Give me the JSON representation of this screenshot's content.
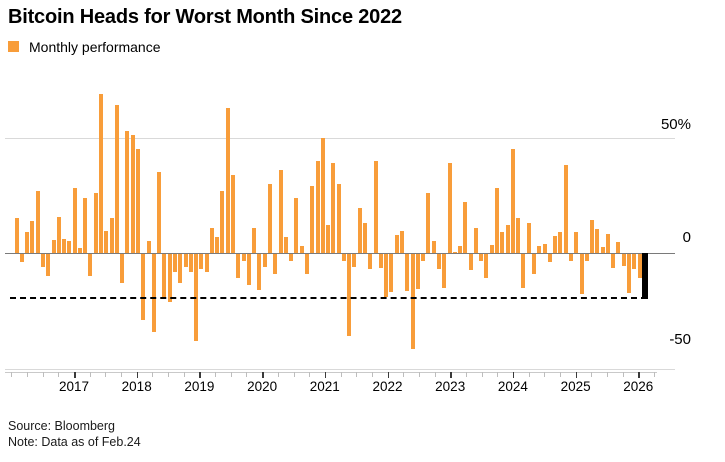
{
  "header": {
    "title": "Bitcoin Heads for Worst Month Since 2022",
    "legend_label": "Monthly performance"
  },
  "footer": {
    "source": "Source: Bloomberg",
    "note": "Note: Data as of Feb.24"
  },
  "chart_data": {
    "type": "bar",
    "title": "Bitcoin Heads for Worst Month Since 2022",
    "legend": [
      "Monthly performance"
    ],
    "unit": "percent monthly return",
    "x_tick_labels": [
      "2017",
      "2018",
      "2019",
      "2020",
      "2021",
      "2022",
      "2023",
      "2024",
      "2025",
      "2026"
    ],
    "y_tick_labels": [
      "50%",
      "0",
      "-50"
    ],
    "y_tick_values": [
      50,
      0,
      -50
    ],
    "ylim": [
      -58,
      78
    ],
    "grid": "horizontal",
    "legend_position": "top-left",
    "dashed_reference_line": -20,
    "bar_color": "#F89D3A",
    "highlight_color": "#000000",
    "highlight_last": true,
    "values": [
      15,
      -4,
      9,
      14,
      27,
      -6,
      -10,
      5.5,
      15.5,
      6,
      5,
      28,
      2,
      24,
      -10,
      26,
      69,
      9.5,
      15,
      64,
      -13,
      53,
      51,
      45,
      -29,
      5,
      -34,
      35,
      -19,
      -21,
      -8,
      -13,
      -6,
      -8,
      -38,
      -7,
      -8,
      11,
      7,
      27,
      63,
      34,
      -11,
      -3.5,
      -14,
      11,
      -16,
      -6,
      30,
      -9,
      36,
      7,
      -3.5,
      24,
      3,
      -9,
      29,
      40,
      50,
      12,
      39,
      30,
      -3.5,
      -36,
      -6,
      19.5,
      13,
      -7,
      40,
      -6.5,
      -19,
      -17,
      8,
      9.5,
      -16.5,
      -41.5,
      -15.5,
      -3.5,
      26,
      5,
      -7,
      -15,
      39,
      0.5,
      3,
      22,
      -7.5,
      11,
      -3.5,
      -11,
      3.5,
      28,
      9,
      12,
      45,
      15,
      -15,
      13,
      -9,
      3,
      4,
      -4,
      7.3,
      9,
      38,
      -3.4,
      9.2,
      -17.8,
      -3.4,
      14.2,
      10.5,
      2.5,
      8.3,
      -6.3,
      4.7,
      -5.8,
      -17.1,
      -7,
      -10.6,
      -20
    ]
  },
  "colors": {
    "grid": "#d9d9d9",
    "zero_line": "#7a7a7a",
    "axis_line": "#c9c9c9",
    "major_tick": "#3a3a3a",
    "minor_tick": "#bdbdbd",
    "dashed_line": "#000000"
  }
}
